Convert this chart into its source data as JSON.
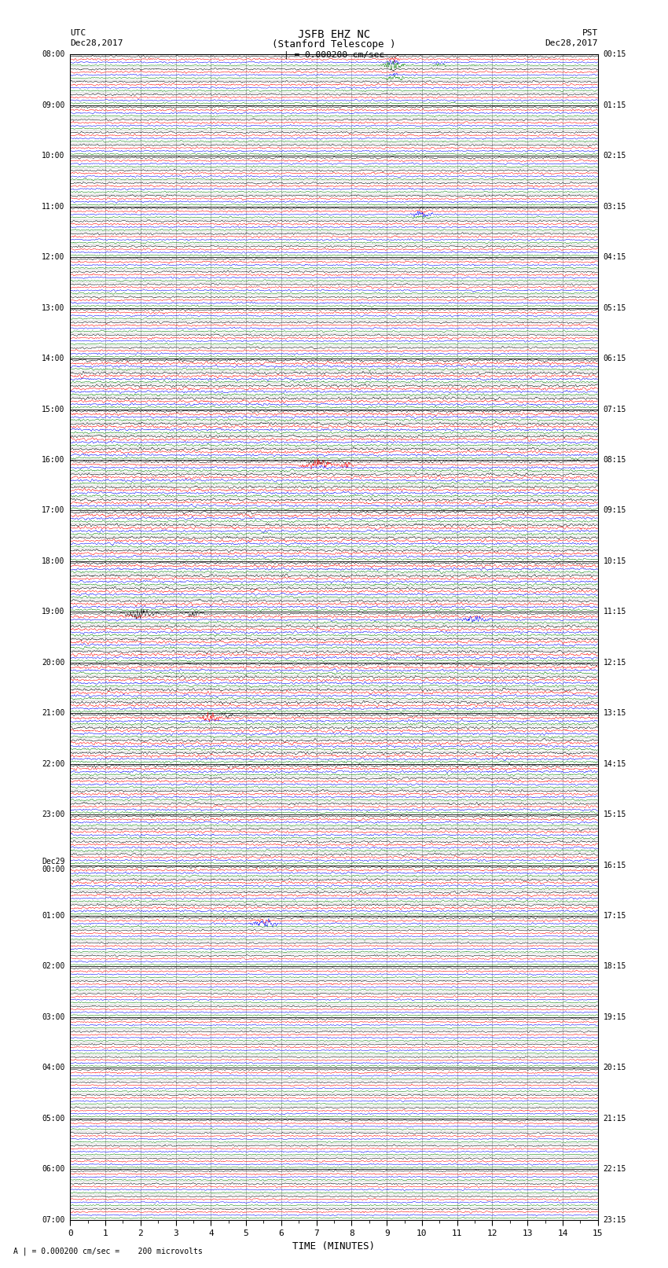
{
  "title_line1": "JSFB EHZ NC",
  "title_line2": "(Stanford Telescope )",
  "scale_label": "| = 0.000200 cm/sec",
  "bottom_label": "A | = 0.000200 cm/sec =    200 microvolts",
  "xlabel": "TIME (MINUTES)",
  "utc_left1": "UTC",
  "utc_left2": "Dec28,2017",
  "pst_right1": "PST",
  "pst_right2": "Dec28,2017",
  "utc_times": [
    "08:00",
    "",
    "",
    "",
    "09:00",
    "",
    "",
    "",
    "10:00",
    "",
    "",
    "",
    "11:00",
    "",
    "",
    "",
    "12:00",
    "",
    "",
    "",
    "13:00",
    "",
    "",
    "",
    "14:00",
    "",
    "",
    "",
    "15:00",
    "",
    "",
    "",
    "16:00",
    "",
    "",
    "",
    "17:00",
    "",
    "",
    "",
    "18:00",
    "",
    "",
    "",
    "19:00",
    "",
    "",
    "",
    "20:00",
    "",
    "",
    "",
    "21:00",
    "",
    "",
    "",
    "22:00",
    "",
    "",
    "",
    "23:00",
    "",
    "",
    "",
    "Dec29\n00:00",
    "",
    "",
    "",
    "01:00",
    "",
    "",
    "",
    "02:00",
    "",
    "",
    "",
    "03:00",
    "",
    "",
    "",
    "04:00",
    "",
    "",
    "",
    "05:00",
    "",
    "",
    "",
    "06:00",
    "",
    "",
    "",
    "07:00",
    "",
    "",
    ""
  ],
  "pst_times": [
    "00:15",
    "",
    "",
    "",
    "01:15",
    "",
    "",
    "",
    "02:15",
    "",
    "",
    "",
    "03:15",
    "",
    "",
    "",
    "04:15",
    "",
    "",
    "",
    "05:15",
    "",
    "",
    "",
    "06:15",
    "",
    "",
    "",
    "07:15",
    "",
    "",
    "",
    "08:15",
    "",
    "",
    "",
    "09:15",
    "",
    "",
    "",
    "10:15",
    "",
    "",
    "",
    "11:15",
    "",
    "",
    "",
    "12:15",
    "",
    "",
    "",
    "13:15",
    "",
    "",
    "",
    "14:15",
    "",
    "",
    "",
    "15:15",
    "",
    "",
    "",
    "16:15",
    "",
    "",
    "",
    "17:15",
    "",
    "",
    "",
    "18:15",
    "",
    "",
    "",
    "19:15",
    "",
    "",
    "",
    "20:15",
    "",
    "",
    "",
    "21:15",
    "",
    "",
    "",
    "22:15",
    "",
    "",
    "",
    "23:15",
    "",
    "",
    ""
  ],
  "colors": [
    "black",
    "red",
    "blue",
    "green"
  ],
  "num_rows": 92,
  "x_min": 0,
  "x_max": 15,
  "bg_color": "white",
  "line_width": 0.35,
  "figsize": [
    8.5,
    16.13
  ],
  "dpi": 100,
  "seed": 42,
  "vline_color": "#aaaaaa",
  "vline_positions": [
    1,
    2,
    3,
    4,
    5,
    6,
    7,
    8,
    9,
    10,
    11,
    12,
    13,
    14
  ]
}
